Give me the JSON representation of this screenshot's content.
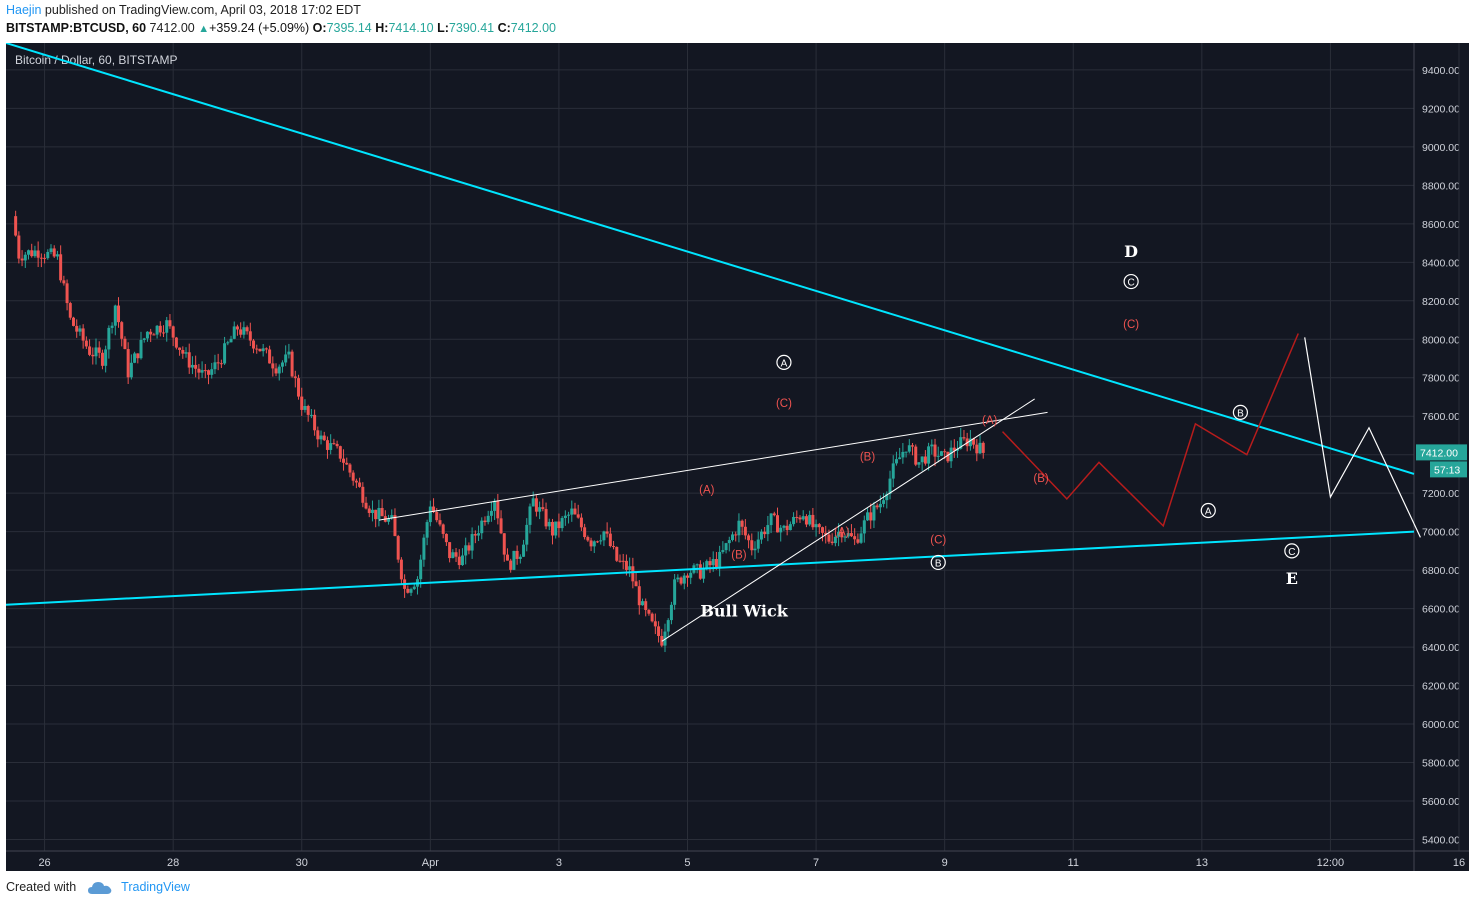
{
  "header": {
    "author": "Haejin",
    "published": "published on TradingView.com, April 03, 2018 17:02 EDT",
    "symbol": "BITSTAMP:BTCUSD, 60",
    "last": "7412.00",
    "change": "+359.24 (+5.09%)",
    "open_label": "O:",
    "open": "7395.14",
    "high_label": "H:",
    "high": "7414.10",
    "low_label": "L:",
    "low": "7390.41",
    "close_label": "C:",
    "close": "7412.00"
  },
  "footer": {
    "created_with": "Created with",
    "brand": "TradingView"
  },
  "colors": {
    "background": "#131722",
    "grid": "#2a2e39",
    "axis_text": "#d1d4dc",
    "up": "#26a69a",
    "down": "#ef5350",
    "trendline": "#00e5ff",
    "red_path": "#b71c1c",
    "red_label": "#ef5350",
    "white": "#ffffff",
    "price_badge": "#26a69a"
  },
  "chart_data": {
    "type": "candlestick",
    "title": "Bitcoin / Dollar, 60, BITSTAMP",
    "x_ticks": [
      "26",
      "28",
      "30",
      "Apr",
      "3",
      "5",
      "7",
      "9",
      "11",
      "13",
      "12:00",
      "16"
    ],
    "y_ticks": [
      "9400.00",
      "9200.00",
      "9000.00",
      "8800.00",
      "8600.00",
      "8400.00",
      "8200.00",
      "8000.00",
      "7800.00",
      "7600.00",
      "7400.00",
      "7200.00",
      "7000.00",
      "6800.00",
      "6600.00",
      "6400.00",
      "6200.00",
      "6000.00",
      "5800.00",
      "5600.00",
      "5400.00"
    ],
    "ylim": [
      5340,
      9540
    ],
    "last_price_label": "7412.00",
    "countdown_label": "57:13",
    "price_path": [
      [
        25.5,
        8640
      ],
      [
        25.6,
        8440
      ],
      [
        25.9,
        8460
      ],
      [
        26.2,
        8420
      ],
      [
        26.4,
        8100
      ],
      [
        26.7,
        7940
      ],
      [
        26.9,
        7900
      ],
      [
        27.1,
        8180
      ],
      [
        27.3,
        7830
      ],
      [
        27.6,
        8040
      ],
      [
        27.9,
        8080
      ],
      [
        28.2,
        7900
      ],
      [
        28.5,
        7800
      ],
      [
        28.7,
        7880
      ],
      [
        29.0,
        8060
      ],
      [
        29.3,
        7970
      ],
      [
        29.6,
        7860
      ],
      [
        29.8,
        7900
      ],
      [
        30.0,
        7660
      ],
      [
        30.3,
        7480
      ],
      [
        30.6,
        7400
      ],
      [
        30.9,
        7220
      ],
      [
        31.1,
        7100
      ],
      [
        31.4,
        7050
      ],
      [
        31.6,
        6700
      ],
      [
        31.8,
        6760
      ],
      [
        32.0,
        7150
      ],
      [
        32.3,
        6880
      ],
      [
        32.5,
        6860
      ],
      [
        32.8,
        7050
      ],
      [
        33.0,
        7180
      ],
      [
        33.2,
        6820
      ],
      [
        33.4,
        6900
      ],
      [
        33.6,
        7160
      ],
      [
        33.9,
        7000
      ],
      [
        34.2,
        7100
      ],
      [
        34.5,
        6950
      ],
      [
        34.7,
        7000
      ],
      [
        34.9,
        6850
      ],
      [
        35.1,
        6800
      ],
      [
        35.3,
        6600
      ],
      [
        35.5,
        6480
      ],
      [
        35.6,
        6440
      ],
      [
        35.8,
        6720
      ],
      [
        36.0,
        6800
      ],
      [
        36.2,
        6790
      ],
      [
        36.5,
        6860
      ],
      [
        36.8,
        7040
      ],
      [
        37.0,
        6920
      ],
      [
        37.3,
        7060
      ],
      [
        37.5,
        7010
      ],
      [
        37.8,
        7100
      ],
      [
        38.0,
        7000
      ],
      [
        38.2,
        6960
      ],
      [
        38.4,
        7010
      ],
      [
        38.6,
        6950
      ],
      [
        38.8,
        7070
      ],
      [
        39.0,
        7150
      ],
      [
        39.2,
        7320
      ],
      [
        39.4,
        7450
      ],
      [
        39.6,
        7360
      ],
      [
        39.8,
        7420
      ],
      [
        40.0,
        7380
      ],
      [
        40.2,
        7450
      ],
      [
        40.4,
        7480
      ],
      [
        40.6,
        7412
      ]
    ],
    "trendlines": [
      {
        "name": "upper",
        "from": [
          25.4,
          9540
        ],
        "to": [
          47.3,
          7300
        ]
      },
      {
        "name": "lower",
        "from": [
          25.4,
          6620
        ],
        "to": [
          47.3,
          7000
        ]
      }
    ],
    "wedge_lines": [
      {
        "from": [
          31.2,
          7060
        ],
        "to": [
          41.6,
          7620
        ]
      },
      {
        "from": [
          35.6,
          6430
        ],
        "to": [
          41.4,
          7690
        ]
      }
    ],
    "red_projection": [
      [
        40.9,
        7520
      ],
      [
        41.9,
        7170
      ],
      [
        42.4,
        7360
      ],
      [
        43.4,
        7030
      ],
      [
        43.9,
        7560
      ],
      [
        44.7,
        7400
      ],
      [
        45.5,
        8030
      ]
    ],
    "white_projection": [
      [
        45.6,
        8010
      ],
      [
        46.0,
        7180
      ],
      [
        46.6,
        7540
      ],
      [
        47.4,
        6970
      ]
    ],
    "annotations": [
      {
        "text": "Bull Wick",
        "x": 36.2,
        "y": 6590,
        "style": "bold-white"
      },
      {
        "text": "(A)",
        "x": 36.3,
        "y": 7220,
        "style": "red"
      },
      {
        "text": "(B)",
        "x": 36.8,
        "y": 6880,
        "style": "red"
      },
      {
        "text": "(C)",
        "x": 37.5,
        "y": 7670,
        "style": "red"
      },
      {
        "text": "A",
        "x": 37.5,
        "y": 7880,
        "style": "circled"
      },
      {
        "text": "(A)",
        "x": 38.4,
        "y": 7000,
        "style": "red"
      },
      {
        "text": "(B)",
        "x": 38.8,
        "y": 7390,
        "style": "red"
      },
      {
        "text": "(C)",
        "x": 39.9,
        "y": 6960,
        "style": "red"
      },
      {
        "text": "B",
        "x": 39.9,
        "y": 6840,
        "style": "circled"
      },
      {
        "text": "(A)",
        "x": 40.7,
        "y": 7580,
        "style": "red"
      },
      {
        "text": "(B)",
        "x": 41.5,
        "y": 7280,
        "style": "red"
      },
      {
        "text": "(C)",
        "x": 42.9,
        "y": 8080,
        "style": "red"
      },
      {
        "text": "C",
        "x": 42.9,
        "y": 8300,
        "style": "circled"
      },
      {
        "text": "D",
        "x": 42.9,
        "y": 8460,
        "style": "bold-white"
      },
      {
        "text": "A",
        "x": 44.1,
        "y": 7110,
        "style": "circled"
      },
      {
        "text": "B",
        "x": 44.6,
        "y": 7620,
        "style": "circled"
      },
      {
        "text": "C",
        "x": 45.4,
        "y": 6900,
        "style": "circled"
      },
      {
        "text": "E",
        "x": 45.4,
        "y": 6760,
        "style": "bold-white"
      }
    ],
    "grid": true
  }
}
